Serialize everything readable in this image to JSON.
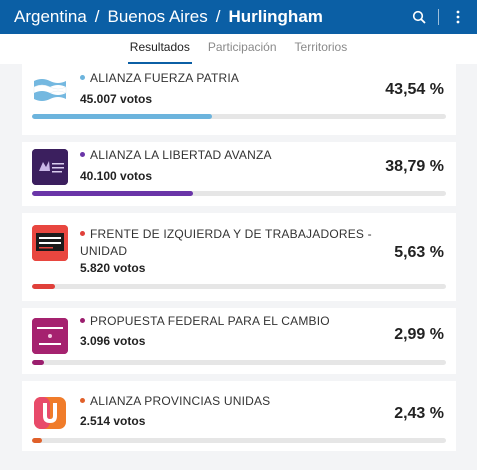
{
  "breadcrumb": {
    "country": "Argentina",
    "province": "Buenos Aires",
    "district": "Hurlingham",
    "separator": "/"
  },
  "tabs": [
    {
      "label": "Resultados",
      "active": true
    },
    {
      "label": "Participación",
      "active": false
    },
    {
      "label": "Territorios",
      "active": false
    }
  ],
  "results": [
    {
      "name": "ALIANZA FUERZA PATRIA",
      "votes": "45.007 votos",
      "percent_label": "43,54 %",
      "percent": 43.54,
      "color": "#6cb4dd"
    },
    {
      "name": "ALIANZA LA LIBERTAD AVANZA",
      "votes": "40.100 votos",
      "percent_label": "38,79 %",
      "percent": 38.79,
      "color": "#6a35a8",
      "logo_text": "LA LIBERTAD AVANZA"
    },
    {
      "name_line1": "FRENTE DE IZQUIERDA Y DE TRABAJADORES -",
      "name_line2": "UNIDAD",
      "votes": "5.820 votos",
      "percent_label": "5,63 %",
      "percent": 5.63,
      "color": "#e0403a",
      "logo_text_1": "FRENTE DE",
      "logo_text_2": "IZQUIERDA"
    },
    {
      "name": "PROPUESTA FEDERAL PARA EL CAMBIO",
      "votes": "3.096 votos",
      "percent_label": "2,99 %",
      "percent": 2.99,
      "color": "#9b1e6e",
      "logo_text_1": "SEGURIDAD",
      "logo_text_2": "LIBERTAD"
    },
    {
      "name": "ALIANZA PROVINCIAS UNIDAS",
      "votes": "2.514 votos",
      "percent_label": "2,43 %",
      "percent": 2.43,
      "color": "#e0602a",
      "logo_letter": "U"
    }
  ]
}
